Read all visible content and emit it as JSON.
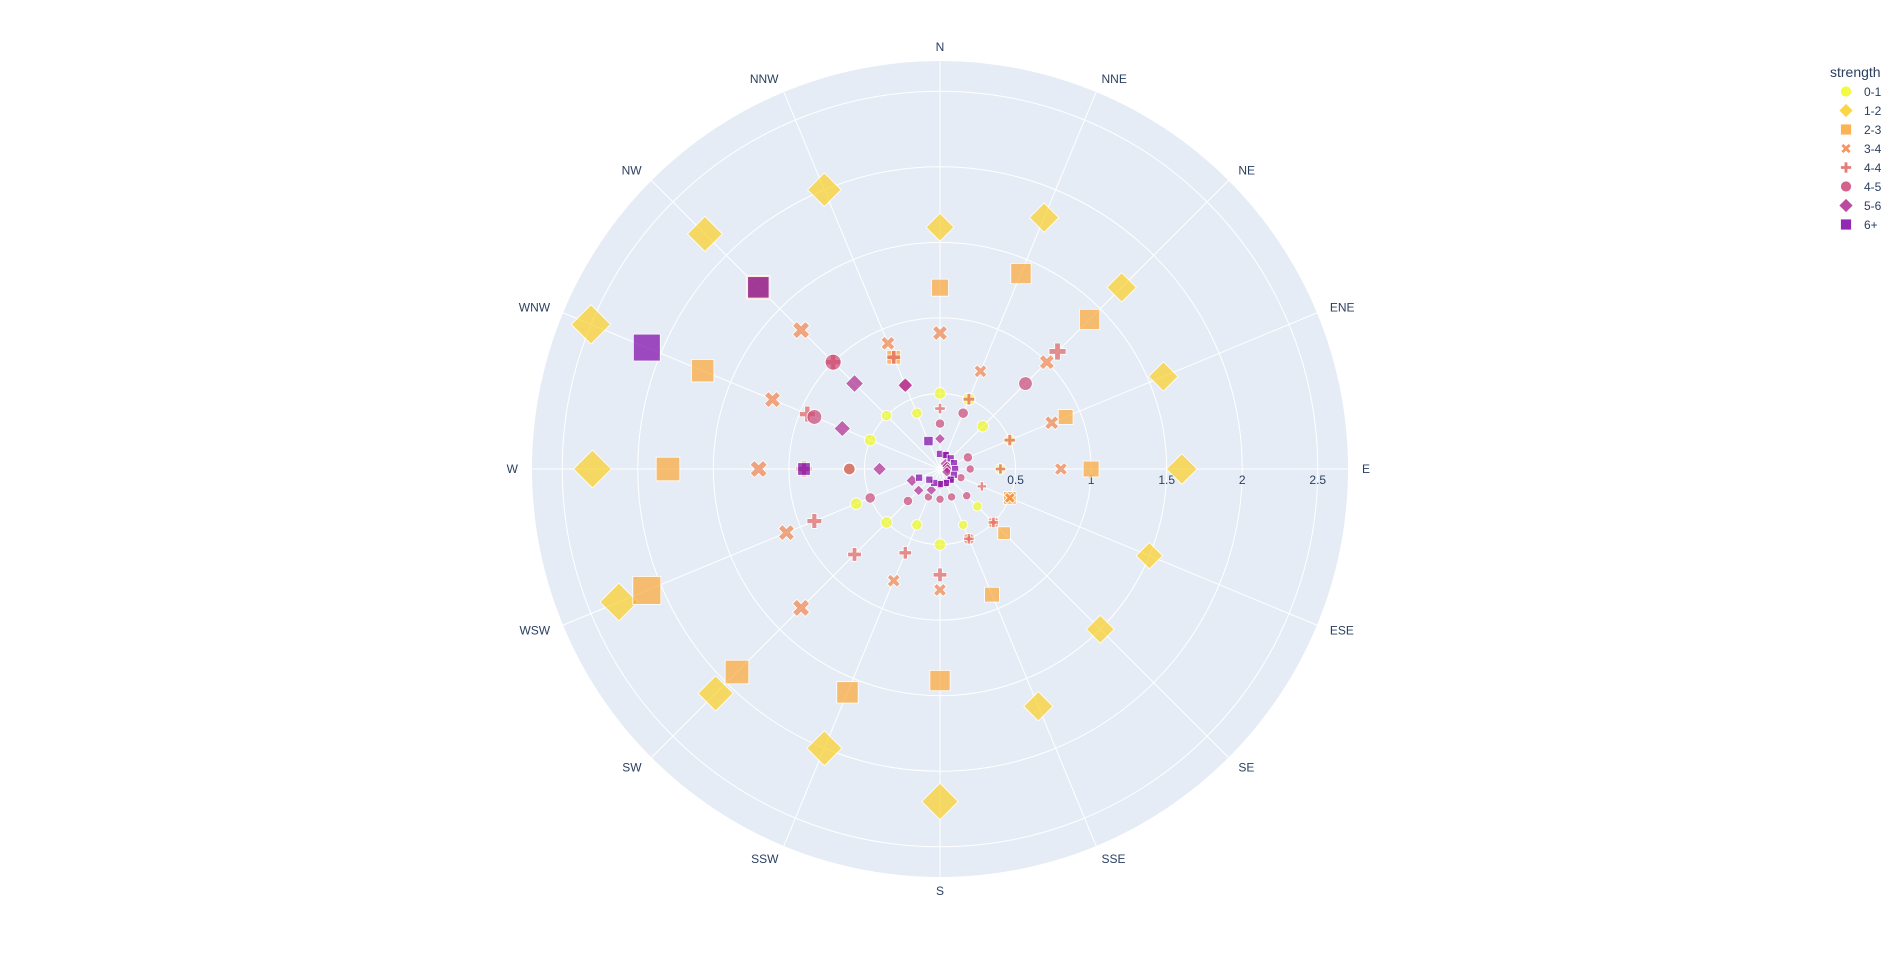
{
  "chart_data": {
    "type": "scatterpolar",
    "angular_axis": {
      "direction": "clockwise",
      "rotation_deg": 90,
      "categories": [
        "N",
        "NNE",
        "NE",
        "ENE",
        "E",
        "ESE",
        "SE",
        "SSE",
        "S",
        "SSW",
        "SW",
        "WSW",
        "W",
        "WNW",
        "NW",
        "NNW"
      ]
    },
    "radial_axis": {
      "range": [
        0,
        2.7
      ],
      "tickvals": [
        0.5,
        1,
        1.5,
        2,
        2.5
      ],
      "ticktext": [
        "0.5",
        "1",
        "1.5",
        "2",
        "2.5"
      ]
    },
    "legend": {
      "title": "strength",
      "placement": "top-right"
    },
    "grid": true,
    "polar_bgcolor": "#e5ecf6",
    "series": [
      {
        "name": "0-1",
        "symbol": "circle",
        "color": "#f0f921",
        "r": [
          0.5,
          0.5,
          0.4,
          0.5,
          0.4,
          0.5,
          0.35,
          0.4,
          0.5,
          0.4,
          0.5,
          0.6,
          0.6,
          0.5,
          0.5,
          0.4
        ],
        "frequency": [
          0.5,
          0.6,
          0.5,
          0.4,
          0.4,
          0.3,
          0.3,
          0.3,
          0.5,
          0.4,
          0.5,
          0.5,
          0.6,
          0.5,
          0.4,
          0.4
        ]
      },
      {
        "name": "1-2",
        "symbol": "diamond",
        "color": "#fcce25",
        "r": [
          1.6,
          1.8,
          1.7,
          1.6,
          1.6,
          1.5,
          1.5,
          1.7,
          2.2,
          2.0,
          2.1,
          2.3,
          2.3,
          2.5,
          2.2,
          2.0
        ],
        "frequency": [
          1.4,
          1.5,
          1.5,
          1.5,
          1.6,
          1.3,
          1.4,
          1.5,
          2.0,
          1.9,
          1.9,
          2.1,
          2.1,
          2.2,
          1.9,
          1.8
        ]
      },
      {
        "name": "2-3",
        "symbol": "square",
        "color": "#fca636",
        "r": [
          1.2,
          1.4,
          1.4,
          0.9,
          1.0,
          0.5,
          0.6,
          0.9,
          1.4,
          1.6,
          1.9,
          2.1,
          1.8,
          1.7,
          1.7,
          0.8
        ],
        "frequency": [
          1.0,
          1.3,
          1.3,
          0.8,
          0.9,
          0.6,
          0.6,
          0.8,
          1.3,
          1.4,
          1.6,
          2.0,
          1.6,
          1.5,
          1.6,
          0.7
        ]
      },
      {
        "name": "3-4",
        "symbol": "x",
        "color": "#f2844b",
        "r": [
          0.9,
          0.7,
          1.0,
          0.8,
          0.8,
          0.5,
          0.5,
          0.5,
          0.8,
          0.8,
          1.3,
          1.1,
          1.2,
          1.2,
          1.3,
          0.9
        ],
        "frequency": [
          0.9,
          0.7,
          0.9,
          0.8,
          0.7,
          0.5,
          0.5,
          0.5,
          0.7,
          0.7,
          1.1,
          1.0,
          1.1,
          1.0,
          1.1,
          0.8
        ]
      },
      {
        "name": "4-4",
        "symbol": "cross",
        "color": "#e16462",
        "r": [
          0.4,
          0.5,
          1.1,
          0.5,
          0.4,
          0.3,
          0.5,
          0.5,
          0.7,
          0.6,
          0.8,
          0.9,
          0.9,
          0.95,
          1.0,
          0.8
        ],
        "frequency": [
          0.4,
          0.5,
          1.0,
          0.5,
          0.4,
          0.3,
          0.4,
          0.4,
          0.7,
          0.6,
          0.7,
          0.8,
          0.9,
          0.9,
          0.9,
          0.7
        ]
      },
      {
        "name": "4-5",
        "symbol": "circle",
        "color": "#cc4778",
        "r": [
          0.3,
          0.4,
          0.8,
          0.2,
          0.2,
          0.15,
          0.25,
          0.2,
          0.2,
          0.2,
          0.3,
          0.5,
          0.6,
          0.9,
          1.0,
          0.6
        ],
        "frequency": [
          0.3,
          0.4,
          0.7,
          0.3,
          0.2,
          0.2,
          0.2,
          0.2,
          0.2,
          0.2,
          0.3,
          0.4,
          0.5,
          0.8,
          0.9,
          0.5
        ]
      },
      {
        "name": "5-6",
        "symbol": "diamond",
        "color": "#b12a90",
        "r": [
          0.2,
          0.1,
          0.05,
          0.05,
          0.05,
          0.05,
          0.1,
          0.1,
          0.1,
          0.15,
          0.2,
          0.2,
          0.4,
          0.7,
          0.8,
          0.6
        ],
        "frequency": [
          0.2,
          0.2,
          0.2,
          0.2,
          0.2,
          0.2,
          0.2,
          0.2,
          0.2,
          0.2,
          0.2,
          0.3,
          0.4,
          0.6,
          0.7,
          0.5
        ]
      },
      {
        "name": "6+",
        "symbol": "square",
        "color": "#7e03a8",
        "r": [
          0.1,
          0.1,
          0.1,
          0.1,
          0.1,
          0.1,
          0.1,
          0.1,
          0.1,
          0.1,
          0.1,
          0.15,
          0.9,
          2.1,
          1.7,
          0.2
        ],
        "frequency": [
          0.1,
          0.1,
          0.1,
          0.1,
          0.1,
          0.1,
          0.1,
          0.1,
          0.1,
          0.1,
          0.1,
          0.1,
          0.6,
          1.9,
          1.4,
          0.3
        ]
      }
    ]
  }
}
